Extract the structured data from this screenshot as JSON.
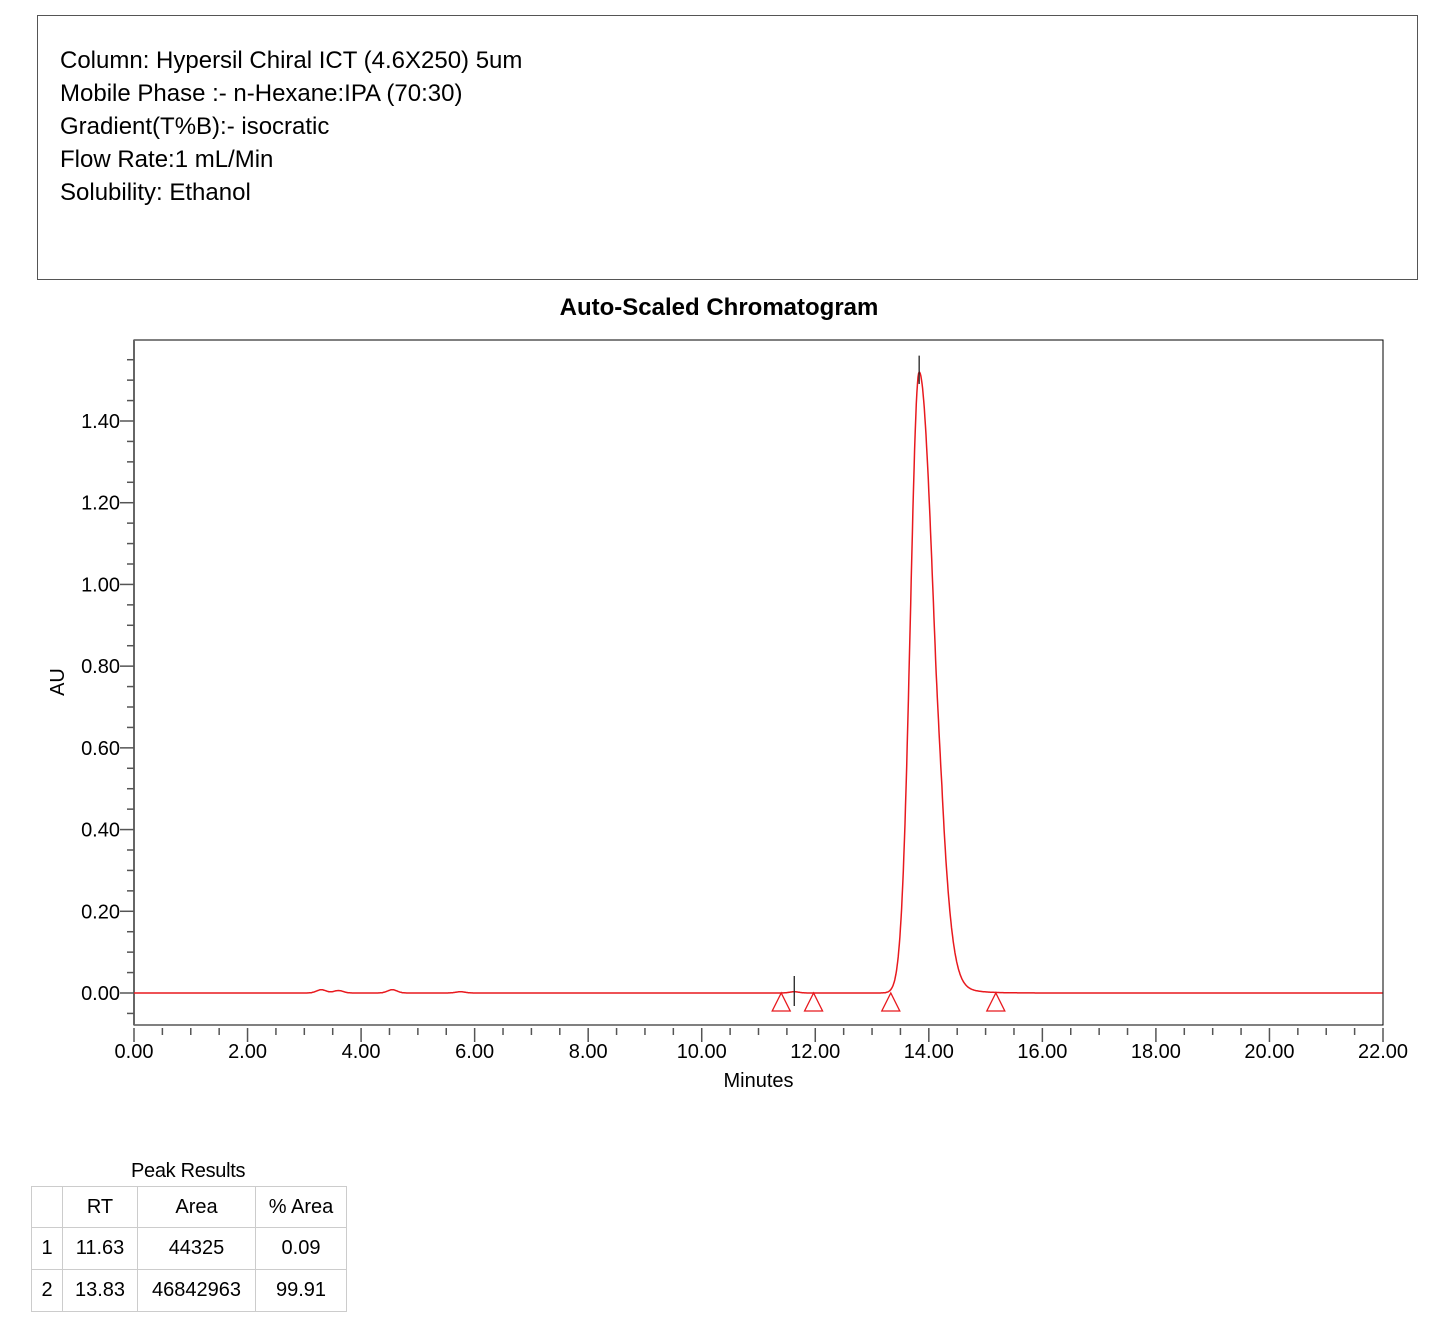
{
  "method_info": {
    "lines": [
      "Column: Hypersil Chiral ICT (4.6X250) 5um",
      "Mobile Phase :- n-Hexane:IPA (70:30)",
      "Gradient(T%B):- isocratic",
      "Flow Rate:1 mL/Min",
      "Solubility: Ethanol"
    ]
  },
  "chart_data": {
    "type": "line",
    "title": "Auto-Scaled Chromatogram",
    "xlabel": "Minutes",
    "ylabel": "AU",
    "xlim": [
      0,
      22
    ],
    "ylim": [
      -0.08,
      1.6
    ],
    "x_ticks": [
      "0.00",
      "2.00",
      "4.00",
      "6.00",
      "8.00",
      "10.00",
      "12.00",
      "14.00",
      "16.00",
      "18.00",
      "20.00",
      "22.00"
    ],
    "y_ticks": [
      "0.00",
      "0.20",
      "0.40",
      "0.60",
      "0.80",
      "1.00",
      "1.20",
      "1.40"
    ],
    "grid": false,
    "series": [
      {
        "name": "Chromatogram",
        "color": "#e8191e",
        "peaks": [
          {
            "rt": 11.63,
            "height": 0.003,
            "start": 11.4,
            "end": 11.97
          },
          {
            "rt": 13.83,
            "height": 1.52,
            "start": 13.33,
            "end": 15.18
          }
        ],
        "baseline_bumps": [
          {
            "x": 3.3,
            "y": 0.008
          },
          {
            "x": 3.6,
            "y": 0.006
          },
          {
            "x": 4.55,
            "y": 0.008
          },
          {
            "x": 5.75,
            "y": 0.003
          }
        ]
      }
    ],
    "annotations": {
      "peak_markers": [
        11.63,
        13.83
      ],
      "integration_triangles": [
        11.4,
        11.97,
        13.33,
        15.18
      ],
      "marker_color": "#e8191e"
    }
  },
  "peak_results": {
    "caption": "Peak Results",
    "columns": [
      "",
      "RT",
      "Area",
      "% Area"
    ],
    "rows": [
      [
        "1",
        "11.63",
        "44325",
        "0.09"
      ],
      [
        "2",
        "13.83",
        "46842963",
        "99.91"
      ]
    ]
  }
}
